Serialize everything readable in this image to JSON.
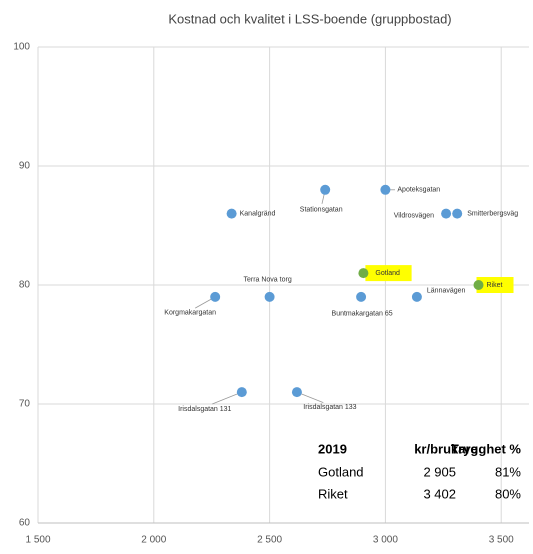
{
  "chart_data": {
    "type": "scatter",
    "title": "Kostnad och kvalitet i LSS-boende (gruppbostad)",
    "xlim": [
      1500,
      3620
    ],
    "ylim": [
      60,
      100
    ],
    "xticks": [
      {
        "value": 1500,
        "label": "1 500"
      },
      {
        "value": 2000,
        "label": "2 000"
      },
      {
        "value": 2500,
        "label": "2 500"
      },
      {
        "value": 3000,
        "label": "3 000"
      },
      {
        "value": 3500,
        "label": "3 500"
      }
    ],
    "yticks": [
      60,
      70,
      80,
      90,
      100
    ],
    "grid": true,
    "highlight_color": "#ffff00",
    "points": [
      {
        "label": "Kanalgränd",
        "x": 2336,
        "y": 86,
        "color": "#5b9bd5",
        "highlight": false
      },
      {
        "label": "Stationsgatan",
        "x": 2740,
        "y": 88,
        "color": "#5b9bd5",
        "highlight": false
      },
      {
        "label": "Apoteksgatan",
        "x": 3000,
        "y": 88,
        "color": "#5b9bd5",
        "highlight": false
      },
      {
        "label": "Vildrosvägen",
        "x": 3262,
        "y": 86,
        "color": "#5b9bd5",
        "highlight": false
      },
      {
        "label": "Smitterbergsväg",
        "x": 3310,
        "y": 86,
        "color": "#5b9bd5",
        "highlight": false
      },
      {
        "label": "Gotland",
        "x": 2905,
        "y": 81,
        "color": "#70ad47",
        "highlight": true
      },
      {
        "label": "Riket",
        "x": 3402,
        "y": 80,
        "color": "#70ad47",
        "highlight": true
      },
      {
        "label": "Terra Nova torg",
        "x": 2500,
        "y": 79,
        "color": "#5b9bd5",
        "highlight": false
      },
      {
        "label": "Korgmakargatan",
        "x": 2265,
        "y": 79,
        "color": "#5b9bd5",
        "highlight": false
      },
      {
        "label": "Buntmakargatan 65",
        "x": 2895,
        "y": 79,
        "color": "#5b9bd5",
        "highlight": false
      },
      {
        "label": "Lännavägen",
        "x": 3136,
        "y": 79,
        "color": "#5b9bd5",
        "highlight": false
      },
      {
        "label": "Irisdalsgatan 131",
        "x": 2380,
        "y": 71,
        "color": "#5b9bd5",
        "highlight": false
      },
      {
        "label": "Irisdalsgatan 133",
        "x": 2618,
        "y": 71,
        "color": "#5b9bd5",
        "highlight": false
      }
    ]
  },
  "table": {
    "header": [
      "2019",
      "kr/brukare",
      "Trygghet %"
    ],
    "rows": [
      [
        "Gotland",
        "2 905",
        "81%"
      ],
      [
        "Riket",
        "3 402",
        "80%"
      ]
    ]
  }
}
